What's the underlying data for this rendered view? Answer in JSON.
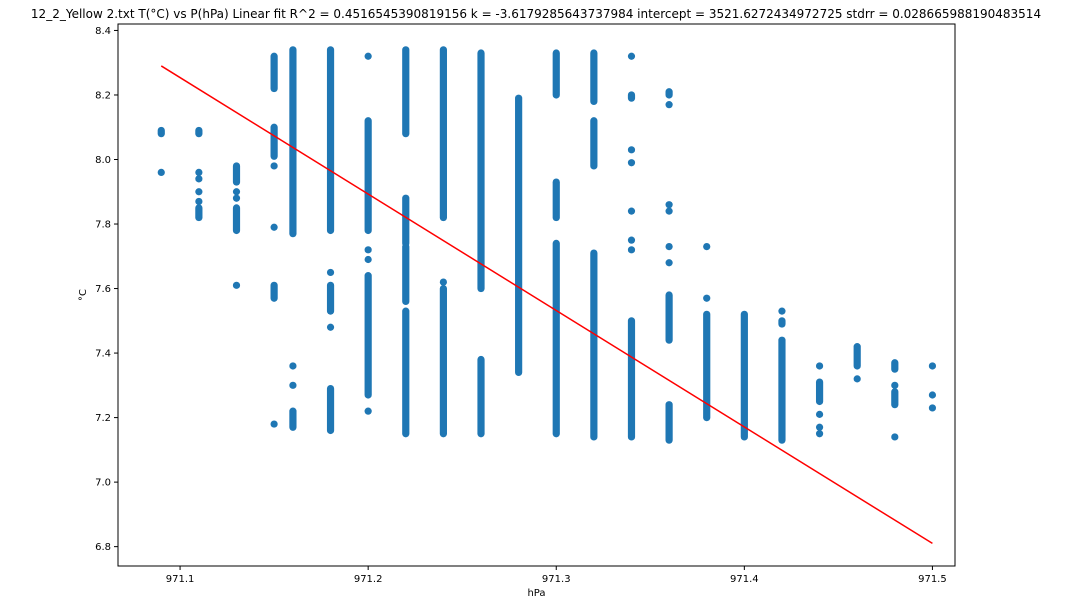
{
  "chart_data": {
    "type": "scatter",
    "title": "12_2_Yellow 2.txt    T(°C) vs P(hPa)    Linear fit    R^2 = 0.4516545390819156  k = -3.6179285643737984  intercept = 3521.6272434972725  stdrr = 0.028665988190483514",
    "xlabel": "hPa",
    "ylabel": "°C",
    "xlim": [
      971.067,
      971.512
    ],
    "ylim": [
      6.74,
      8.42
    ],
    "x_ticks": [
      971.1,
      971.2,
      971.3,
      971.4,
      971.5
    ],
    "x_tick_labels": [
      "971.1",
      "971.2",
      "971.3",
      "971.4",
      "971.5"
    ],
    "y_ticks": [
      6.8,
      7.0,
      7.2,
      7.4,
      7.6,
      7.8,
      8.0,
      8.2,
      8.4
    ],
    "y_tick_labels": [
      "6.8",
      "7.0",
      "7.2",
      "7.4",
      "7.6",
      "7.8",
      "8.0",
      "8.2",
      "8.4"
    ],
    "grid": false,
    "colors": {
      "points": "#1f77b4",
      "fit": "#ff0000"
    },
    "series": [
      {
        "kind": "scatter",
        "columns": [
          {
            "x": 971.09,
            "segments": [
              [
                8.08,
                8.09
              ]
            ],
            "points": [
              7.96
            ]
          },
          {
            "x": 971.11,
            "segments": [
              [
                8.08,
                8.09
              ],
              [
                7.82,
                7.85
              ]
            ],
            "points": [
              7.96,
              7.94,
              7.9,
              7.87
            ]
          },
          {
            "x": 971.13,
            "segments": [
              [
                7.93,
                7.98
              ],
              [
                7.78,
                7.85
              ]
            ],
            "points": [
              7.9,
              7.88,
              7.61
            ]
          },
          {
            "x": 971.15,
            "segments": [
              [
                8.22,
                8.32
              ],
              [
                8.01,
                8.1
              ],
              [
                7.57,
                7.61
              ]
            ],
            "points": [
              7.98,
              7.79,
              7.18
            ]
          },
          {
            "x": 971.16,
            "segments": [
              [
                7.77,
                8.34
              ],
              [
                7.17,
                7.22
              ]
            ],
            "points": [
              7.36,
              7.3
            ]
          },
          {
            "x": 971.18,
            "segments": [
              [
                7.78,
                8.34
              ],
              [
                7.53,
                7.61
              ],
              [
                7.16,
                7.29
              ]
            ],
            "points": [
              7.65,
              7.48
            ]
          },
          {
            "x": 971.2,
            "segments": [
              [
                7.78,
                8.12
              ],
              [
                7.27,
                7.64
              ],
              [
                8.32,
                8.32
              ]
            ],
            "points": [
              7.72,
              7.69,
              7.22
            ]
          },
          {
            "x": 971.22,
            "segments": [
              [
                8.08,
                8.34
              ],
              [
                7.74,
                7.88
              ],
              [
                7.56,
                7.73
              ],
              [
                7.15,
                7.53
              ]
            ],
            "points": []
          },
          {
            "x": 971.24,
            "segments": [
              [
                7.82,
                8.34
              ],
              [
                7.15,
                7.6
              ]
            ],
            "points": [
              7.62
            ]
          },
          {
            "x": 971.26,
            "segments": [
              [
                7.6,
                8.33
              ],
              [
                7.15,
                7.38
              ]
            ],
            "points": []
          },
          {
            "x": 971.28,
            "segments": [
              [
                7.34,
                8.19
              ]
            ],
            "points": []
          },
          {
            "x": 971.3,
            "segments": [
              [
                8.2,
                8.33
              ],
              [
                7.82,
                7.93
              ],
              [
                7.15,
                7.74
              ]
            ],
            "points": []
          },
          {
            "x": 971.32,
            "segments": [
              [
                8.18,
                8.33
              ],
              [
                7.98,
                8.12
              ],
              [
                7.14,
                7.71
              ]
            ],
            "points": []
          },
          {
            "x": 971.34,
            "segments": [
              [
                7.14,
                7.5
              ],
              [
                8.19,
                8.2
              ]
            ],
            "points": [
              8.32,
              8.03,
              7.99,
              7.84,
              7.75,
              7.72
            ]
          },
          {
            "x": 971.36,
            "segments": [
              [
                7.44,
                7.58
              ],
              [
                7.13,
                7.24
              ],
              [
                8.2,
                8.21
              ]
            ],
            "points": [
              8.17,
              7.86,
              7.84,
              7.73,
              7.68
            ]
          },
          {
            "x": 971.38,
            "segments": [
              [
                7.2,
                7.52
              ]
            ],
            "points": [
              7.73,
              7.57
            ]
          },
          {
            "x": 971.4,
            "segments": [
              [
                7.14,
                7.52
              ]
            ],
            "points": []
          },
          {
            "x": 971.42,
            "segments": [
              [
                7.13,
                7.44
              ],
              [
                7.49,
                7.5
              ]
            ],
            "points": [
              7.53
            ]
          },
          {
            "x": 971.44,
            "segments": [
              [
                7.25,
                7.31
              ]
            ],
            "points": [
              7.36,
              7.21,
              7.17,
              7.15
            ]
          },
          {
            "x": 971.46,
            "segments": [
              [
                7.36,
                7.42
              ]
            ],
            "points": [
              7.32
            ]
          },
          {
            "x": 971.48,
            "segments": [
              [
                7.35,
                7.37
              ],
              [
                7.24,
                7.28
              ]
            ],
            "points": [
              7.3,
              7.14
            ]
          },
          {
            "x": 971.5,
            "segments": [],
            "points": [
              7.36,
              7.27,
              7.23
            ]
          }
        ]
      },
      {
        "kind": "line",
        "x": [
          971.09,
          971.5
        ],
        "y": [
          8.29,
          6.81
        ]
      }
    ]
  }
}
